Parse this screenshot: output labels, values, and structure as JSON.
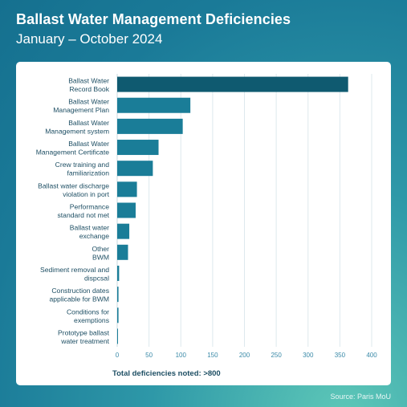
{
  "header": {
    "title": "Ballast Water Management Deficiencies",
    "subtitle": "January – October 2024"
  },
  "footer": {
    "note": "Total deficiencies noted: >800",
    "source": "Source: Paris MoU"
  },
  "colors": {
    "bar": "#1a7d98",
    "bar_highlight": "#0f5a70",
    "grid": "#dde9ee"
  },
  "chart_data": {
    "type": "bar",
    "orientation": "horizontal",
    "categories": [
      [
        "Ballast Water",
        "Record Book"
      ],
      [
        "Ballast Water",
        "Management Plan"
      ],
      [
        "Ballast Water",
        "Management system"
      ],
      [
        "Ballast Water",
        "Management Certificate"
      ],
      [
        "Crew training and",
        "familiarization"
      ],
      [
        "Ballast water discharge",
        "violation in port"
      ],
      [
        "Performance",
        "standard not met"
      ],
      [
        "Ballast water",
        "exchange"
      ],
      [
        "Other",
        "BWM"
      ],
      [
        "Sediment removal and",
        "dispcsal"
      ],
      [
        "Construction dates",
        "applicable for BWM"
      ],
      [
        "Conditions for",
        "exemptions"
      ],
      [
        "Prototype ballast",
        "water treatment"
      ]
    ],
    "values": [
      363,
      115,
      103,
      65,
      56,
      31,
      29,
      19,
      17,
      3,
      2,
      2,
      1
    ],
    "xlim": [
      0,
      400
    ],
    "xticks": [
      0,
      50,
      100,
      150,
      200,
      250,
      300,
      350,
      400
    ],
    "grid": true,
    "legend": "none"
  }
}
